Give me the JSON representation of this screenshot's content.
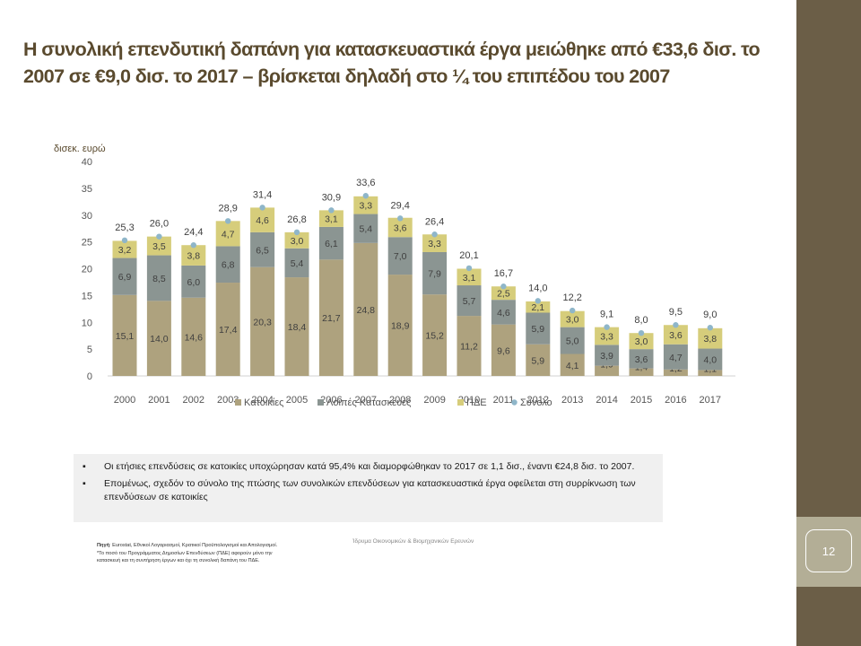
{
  "title": "Η συνολική επενδυτική δαπάνη για κατασκευαστικά έργα μειώθηκε από €33,6 δισ. το 2007 σε €9,0 δισ. το 2017 – βρίσκεται δηλαδή στο ¼ του επιπέδου του 2007",
  "page_number": "12",
  "notes": [
    "Οι ετήσιες επενδύσεις σε κατοικίες υποχώρησαν κατά 95,4% και διαμορφώθηκαν το 2017 σε 1,1 δισ., έναντι €24,8 δισ. το 2007.",
    "Επομένως, σχεδόν το σύνολο της πτώσης των συνολικών επενδύσεων για κατασκευαστικά έργα οφείλεται στη συρρίκνωση των επενδύσεων σε κατοικίες"
  ],
  "bullet_glyph": "▪",
  "source_label": "Πηγή",
  "source_text": ": Eurostat, Εθνικοί Λογαριασμοί, Κρατικοί Προϋπολογισμοί και Απολογισμοί. *Το ποσό του Προγράμματος Δημοσίων Επενδύσεων (ΠΔΕ) αφορούν μόνο την κατασκευή και τη συντήρηση έργων και όχι τη συνολική δαπάνη του ΠΔΕ.",
  "footer": "Ίδρυμα Οικονομικών & Βιομηχανικών Ερευνών",
  "colors": {
    "sidebar": "#6b5e47",
    "housing": "#aea27e",
    "other": "#8b9592",
    "pde": "#d6cd7b",
    "total": "#8fb6c9",
    "title": "#5a4a2e"
  },
  "chart_data": {
    "type": "bar",
    "stacked": true,
    "ylabel": "δισεκ. ευρώ",
    "ylim": [
      0,
      40
    ],
    "yticks": [
      0,
      5,
      10,
      15,
      20,
      25,
      30,
      35,
      40
    ],
    "grid": false,
    "legend_position": "bottom",
    "categories": [
      "2000",
      "2001",
      "2002",
      "2003",
      "2004",
      "2005",
      "2006",
      "2007",
      "2008",
      "2009",
      "2010",
      "2011",
      "2012",
      "2013",
      "2014",
      "2015",
      "2016",
      "2017"
    ],
    "series": [
      {
        "name": "Κατοικίες",
        "values": [
          15.1,
          14.0,
          14.6,
          17.4,
          20.3,
          18.4,
          21.7,
          24.8,
          18.9,
          15.2,
          11.2,
          9.6,
          5.9,
          4.1,
          1.9,
          1.4,
          1.2,
          1.1
        ]
      },
      {
        "name": "Λοιπές Κατασκευές",
        "values": [
          6.9,
          8.5,
          6.0,
          6.8,
          6.5,
          5.4,
          6.1,
          5.4,
          7.0,
          7.9,
          5.7,
          4.6,
          5.9,
          5.0,
          3.9,
          3.6,
          4.7,
          4.0
        ]
      },
      {
        "name": "ΠΔΕ",
        "values": [
          3.2,
          3.5,
          3.8,
          4.7,
          4.6,
          3.0,
          3.1,
          3.3,
          3.6,
          3.3,
          3.1,
          2.5,
          2.1,
          3.0,
          3.3,
          3.0,
          3.6,
          3.8
        ]
      }
    ],
    "total": {
      "name": "Σύνολο",
      "values": [
        25.3,
        26.0,
        24.4,
        28.9,
        31.4,
        26.8,
        30.9,
        33.6,
        29.4,
        26.4,
        20.1,
        16.7,
        14.0,
        12.2,
        9.1,
        8.0,
        9.5,
        9.0
      ]
    }
  }
}
